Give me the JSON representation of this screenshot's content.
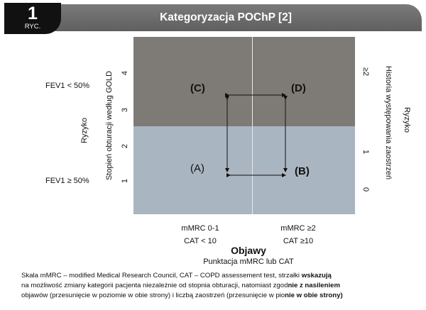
{
  "header": {
    "badge_number": "1",
    "badge_label": "RYC.",
    "title": "Kategoryzacja POChP [2]"
  },
  "quadrants": {
    "C": "(C)",
    "D": "(D)",
    "A": "(A)",
    "B": "(B)"
  },
  "left": {
    "fev_top": "FEV1 < 50%",
    "fev_bottom": "FEV1 ≥ 50%",
    "ryzyko": "Ryzyko",
    "stopien": "Stopień obturacji według GOLD",
    "ticks": [
      "4",
      "3",
      "2",
      "1"
    ]
  },
  "right": {
    "tick_top": "≥2",
    "tick_mid": "1",
    "tick_bot": "0",
    "historia": "Historia występowania zaostrzeń",
    "ryzyko": "Ryzyko"
  },
  "bottom": {
    "col1_line1": "mMRC 0-1",
    "col1_line2": "CAT < 10",
    "col2_line1": "mMRC ≥2",
    "col2_line2": "CAT ≥10",
    "objawy": "Objawy",
    "punktacja": "Punktacja mMRC lub CAT"
  },
  "footer": {
    "line1_a": "Skala mMRC – modified Medical Research Council, CAT – COPD assessement test, strzałki ",
    "line1_b": "wskazują",
    "line2_a": "na możliwość zmiany kategorii pacjenta niezależnie od stopnia obturacji, natomiast zgod",
    "line2_b": "nie z nasileniem",
    "line3_a": "objawów (przesunięcie w poziomie w obie strony) i  liczbą zaostrzeń  (przesunięcie w pio",
    "line3_b": "nie w obie strony)"
  },
  "colors": {
    "header": "#6b6b6b",
    "top_quadrants": "#7e7b76",
    "bottom_quadrants": "#a9b5c1"
  }
}
